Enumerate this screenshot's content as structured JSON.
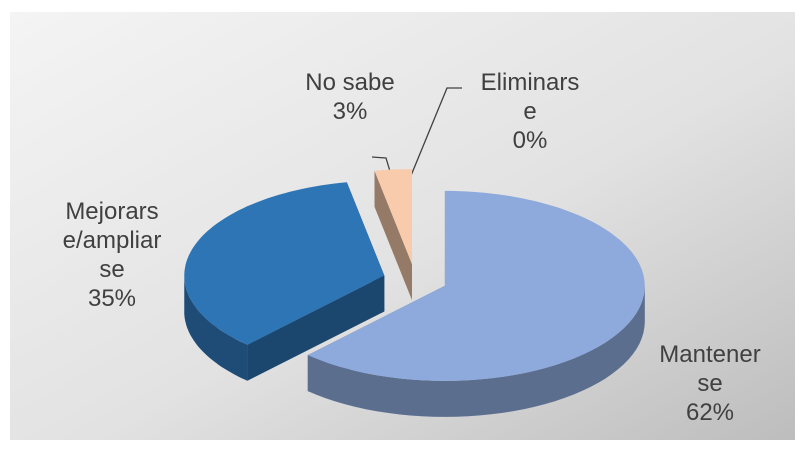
{
  "chart_data": {
    "type": "pie3d",
    "categories": [
      "Mantenerse",
      "Mejorarse/ampliarse",
      "No sabe",
      "Eliminarse"
    ],
    "values": [
      62,
      35,
      3,
      0
    ],
    "value_labels": [
      "62%",
      "35%",
      "3%",
      "0%"
    ],
    "colors": [
      "#8EA9DB",
      "#2E75B6",
      "#F8CBAD",
      "#C55A11"
    ]
  }
}
